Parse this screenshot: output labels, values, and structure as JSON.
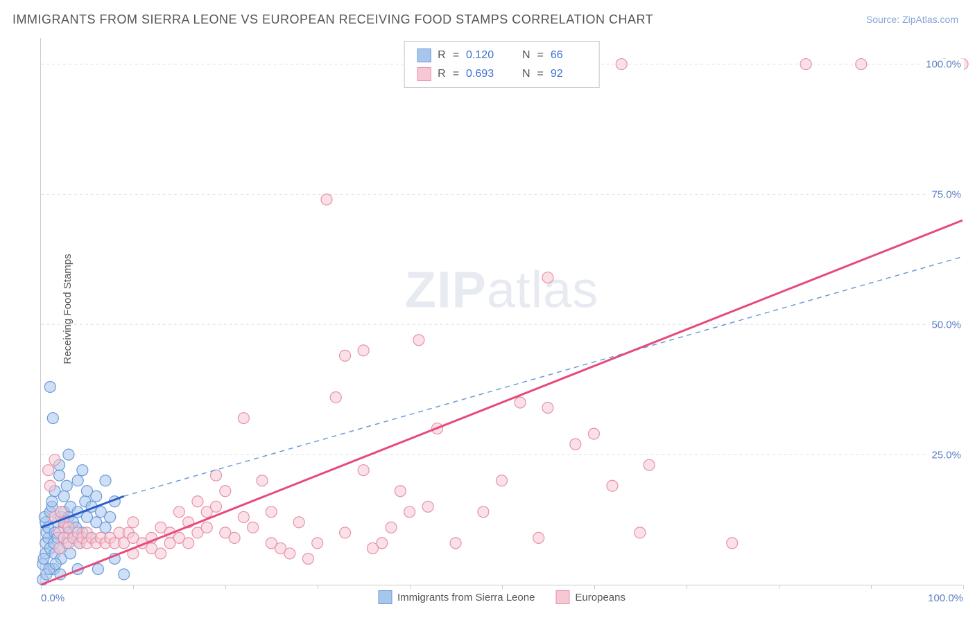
{
  "title": "IMMIGRANTS FROM SIERRA LEONE VS EUROPEAN RECEIVING FOOD STAMPS CORRELATION CHART",
  "source_label": "Source: ",
  "source_name": "ZipAtlas.com",
  "y_axis_label": "Receiving Food Stamps",
  "watermark": {
    "bold": "ZIP",
    "rest": "atlas"
  },
  "chart": {
    "type": "scatter",
    "xlim": [
      0,
      100
    ],
    "ylim": [
      0,
      105
    ],
    "x_ticks": [
      0,
      10,
      20,
      30,
      40,
      50,
      60,
      70,
      80,
      90,
      100
    ],
    "x_tick_labels": {
      "0": "0.0%",
      "100": "100.0%"
    },
    "y_ticks": [
      25,
      50,
      75,
      100
    ],
    "y_tick_labels": {
      "25": "25.0%",
      "50": "50.0%",
      "75": "75.0%",
      "100": "100.0%"
    },
    "grid_color": "#dddddd",
    "axis_color": "#cccccc",
    "background_color": "#ffffff",
    "series": [
      {
        "name": "Immigrants from Sierra Leone",
        "marker_color": "#a8c5ec",
        "marker_border": "#6a9ad8",
        "marker_radius": 8,
        "line_color": "#2a5cc9",
        "dash_color": "#6a9ad8",
        "R": "0.120",
        "N": "66",
        "trend_solid": {
          "x1": 0,
          "y1": 11,
          "x2": 9,
          "y2": 17
        },
        "trend_dash": {
          "x1": 9,
          "y1": 17,
          "x2": 100,
          "y2": 63
        },
        "points": [
          [
            0.2,
            1
          ],
          [
            0.2,
            4
          ],
          [
            0.5,
            6
          ],
          [
            0.5,
            8
          ],
          [
            0.8,
            9
          ],
          [
            0.6,
            10
          ],
          [
            0.5,
            12
          ],
          [
            0.4,
            13
          ],
          [
            0.8,
            11
          ],
          [
            1.0,
            14
          ],
          [
            1.0,
            7
          ],
          [
            1.2,
            15
          ],
          [
            1.2,
            16
          ],
          [
            1.4,
            8
          ],
          [
            1.5,
            10
          ],
          [
            1.5,
            18
          ],
          [
            1.5,
            6
          ],
          [
            1.8,
            9
          ],
          [
            1.8,
            12
          ],
          [
            2.0,
            21
          ],
          [
            2.0,
            23
          ],
          [
            2.0,
            7
          ],
          [
            2.2,
            13
          ],
          [
            2.2,
            5
          ],
          [
            2.5,
            11
          ],
          [
            2.5,
            14
          ],
          [
            2.5,
            17
          ],
          [
            2.8,
            8
          ],
          [
            2.8,
            19
          ],
          [
            3.0,
            25
          ],
          [
            1.0,
            38
          ],
          [
            1.3,
            32
          ],
          [
            3.0,
            10
          ],
          [
            3.0,
            13
          ],
          [
            3.2,
            6
          ],
          [
            3.2,
            15
          ],
          [
            3.5,
            9
          ],
          [
            3.5,
            12
          ],
          [
            3.8,
            11
          ],
          [
            4.0,
            20
          ],
          [
            4.0,
            14
          ],
          [
            4.2,
            8
          ],
          [
            4.5,
            22
          ],
          [
            4.5,
            10
          ],
          [
            4.8,
            16
          ],
          [
            5.0,
            13
          ],
          [
            5.0,
            18
          ],
          [
            5.5,
            9
          ],
          [
            5.5,
            15
          ],
          [
            6.0,
            12
          ],
          [
            6.0,
            17
          ],
          [
            6.5,
            14
          ],
          [
            7.0,
            11
          ],
          [
            7.0,
            20
          ],
          [
            7.5,
            13
          ],
          [
            8.0,
            16
          ],
          [
            8.0,
            5
          ],
          [
            4.0,
            3
          ],
          [
            6.2,
            3
          ],
          [
            9.0,
            2
          ],
          [
            1.4,
            3
          ],
          [
            2.1,
            2
          ],
          [
            0.6,
            2
          ],
          [
            0.3,
            5
          ],
          [
            0.9,
            3
          ],
          [
            1.6,
            4
          ]
        ]
      },
      {
        "name": "Europeans",
        "marker_color": "#f6c8d4",
        "marker_border": "#e890a8",
        "marker_radius": 8,
        "line_color": "#e64a7a",
        "R": "0.693",
        "N": "92",
        "trend_solid": {
          "x1": 0,
          "y1": 0,
          "x2": 100,
          "y2": 70
        },
        "points": [
          [
            0.8,
            22
          ],
          [
            1.0,
            19
          ],
          [
            1.5,
            13
          ],
          [
            1.5,
            24
          ],
          [
            2,
            7
          ],
          [
            2,
            10
          ],
          [
            2.2,
            14
          ],
          [
            2.5,
            9
          ],
          [
            2.5,
            12
          ],
          [
            3,
            8
          ],
          [
            3,
            11
          ],
          [
            3.5,
            9
          ],
          [
            4,
            10
          ],
          [
            4.2,
            8
          ],
          [
            4.5,
            9
          ],
          [
            5,
            8
          ],
          [
            5,
            10
          ],
          [
            5.5,
            9
          ],
          [
            6,
            8
          ],
          [
            6.5,
            9
          ],
          [
            7,
            8
          ],
          [
            7.5,
            9
          ],
          [
            8,
            8
          ],
          [
            8.5,
            10
          ],
          [
            9,
            8
          ],
          [
            9.5,
            10
          ],
          [
            10,
            9
          ],
          [
            10,
            12
          ],
          [
            10,
            6
          ],
          [
            11,
            8
          ],
          [
            12,
            9
          ],
          [
            12,
            7
          ],
          [
            13,
            11
          ],
          [
            13,
            6
          ],
          [
            14,
            10
          ],
          [
            14,
            8
          ],
          [
            15,
            14
          ],
          [
            15,
            9
          ],
          [
            16,
            8
          ],
          [
            16,
            12
          ],
          [
            17,
            10
          ],
          [
            17,
            16
          ],
          [
            18,
            11
          ],
          [
            18,
            14
          ],
          [
            19,
            15
          ],
          [
            19,
            21
          ],
          [
            20,
            10
          ],
          [
            20,
            18
          ],
          [
            21,
            9
          ],
          [
            22,
            13
          ],
          [
            22,
            32
          ],
          [
            23,
            11
          ],
          [
            24,
            20
          ],
          [
            25,
            14
          ],
          [
            25,
            8
          ],
          [
            26,
            7
          ],
          [
            27,
            6
          ],
          [
            28,
            12
          ],
          [
            29,
            5
          ],
          [
            30,
            8
          ],
          [
            31,
            74
          ],
          [
            32,
            36
          ],
          [
            33,
            44
          ],
          [
            33,
            10
          ],
          [
            35,
            45
          ],
          [
            35,
            22
          ],
          [
            36,
            7
          ],
          [
            37,
            8
          ],
          [
            38,
            11
          ],
          [
            39,
            18
          ],
          [
            40,
            14
          ],
          [
            41,
            47
          ],
          [
            42,
            15
          ],
          [
            43,
            30
          ],
          [
            45,
            8
          ],
          [
            48,
            14
          ],
          [
            50,
            20
          ],
          [
            52,
            35
          ],
          [
            54,
            9
          ],
          [
            55,
            34
          ],
          [
            55,
            59
          ],
          [
            58,
            27
          ],
          [
            60,
            29
          ],
          [
            62,
            19
          ],
          [
            63,
            100
          ],
          [
            65,
            10
          ],
          [
            66,
            23
          ],
          [
            75,
            8
          ],
          [
            83,
            100
          ],
          [
            89,
            100
          ],
          [
            98,
            100
          ],
          [
            100,
            100
          ]
        ]
      }
    ]
  },
  "legend": {
    "series1": "Immigrants from Sierra Leone",
    "series2": "Europeans"
  },
  "stats_labels": {
    "R": "R",
    "eq": "=",
    "N": "N"
  }
}
